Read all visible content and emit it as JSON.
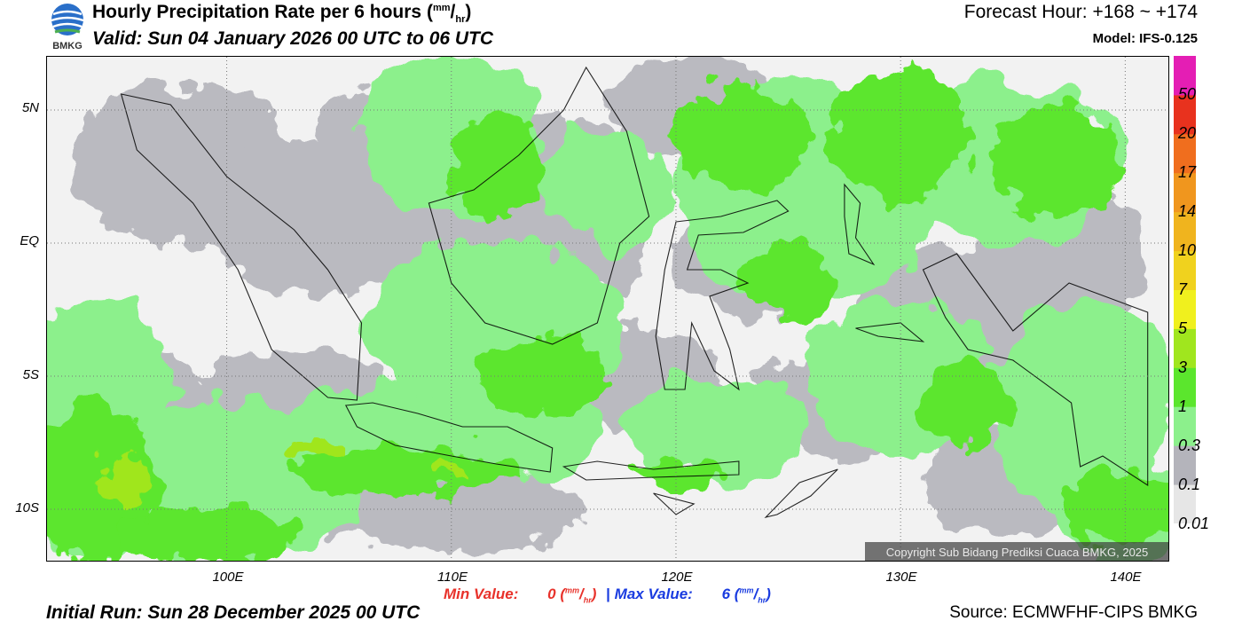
{
  "header": {
    "logo_text": "BMKG",
    "title": "Hourly Precipitation Rate per 6 hours",
    "title_unit_num": "mm",
    "title_unit_den": "hr",
    "valid": "Valid: Sun 04 January 2026 00 UTC to 06 UTC",
    "forecast_hour": "Forecast Hour: +168 ~ +174",
    "model": "Model: IFS-0.125"
  },
  "map": {
    "lat_labels": [
      "5N",
      "EQ",
      "5S",
      "10S"
    ],
    "lon_labels": [
      "100E",
      "110E",
      "120E",
      "130E",
      "140E"
    ],
    "extent": {
      "lon": [
        92,
        142
      ],
      "lat": [
        -12,
        7
      ]
    },
    "copyright": "Copyright Sub Bidang Prediksi Cuaca BMKG, 2025"
  },
  "legend": {
    "levels": [
      "0.01",
      "0.1",
      "0.3",
      "1",
      "3",
      "5",
      "7",
      "10",
      "14",
      "17",
      "20",
      "50"
    ],
    "colors": [
      "#e6e6e6",
      "#b4b4bb",
      "#8cf08c",
      "#5be62d",
      "#a0e61e",
      "#f0f01e",
      "#f0d21e",
      "#f0b41e",
      "#f0961e",
      "#f06e1e",
      "#e8321e",
      "#e41eb4",
      "#f0f0f0",
      "#46e61e",
      "#96aa96"
    ]
  },
  "footer": {
    "min_label": "Min Value:",
    "min_value": "0",
    "max_label": "Max Value:",
    "max_value": "6",
    "unit_num": "mm",
    "unit_den": "hr",
    "separator": "|",
    "initial_run": "Initial Run: Sun 28 December 2025 00 UTC",
    "source": "Source: ECMWFHF-CIPS BMKG"
  }
}
